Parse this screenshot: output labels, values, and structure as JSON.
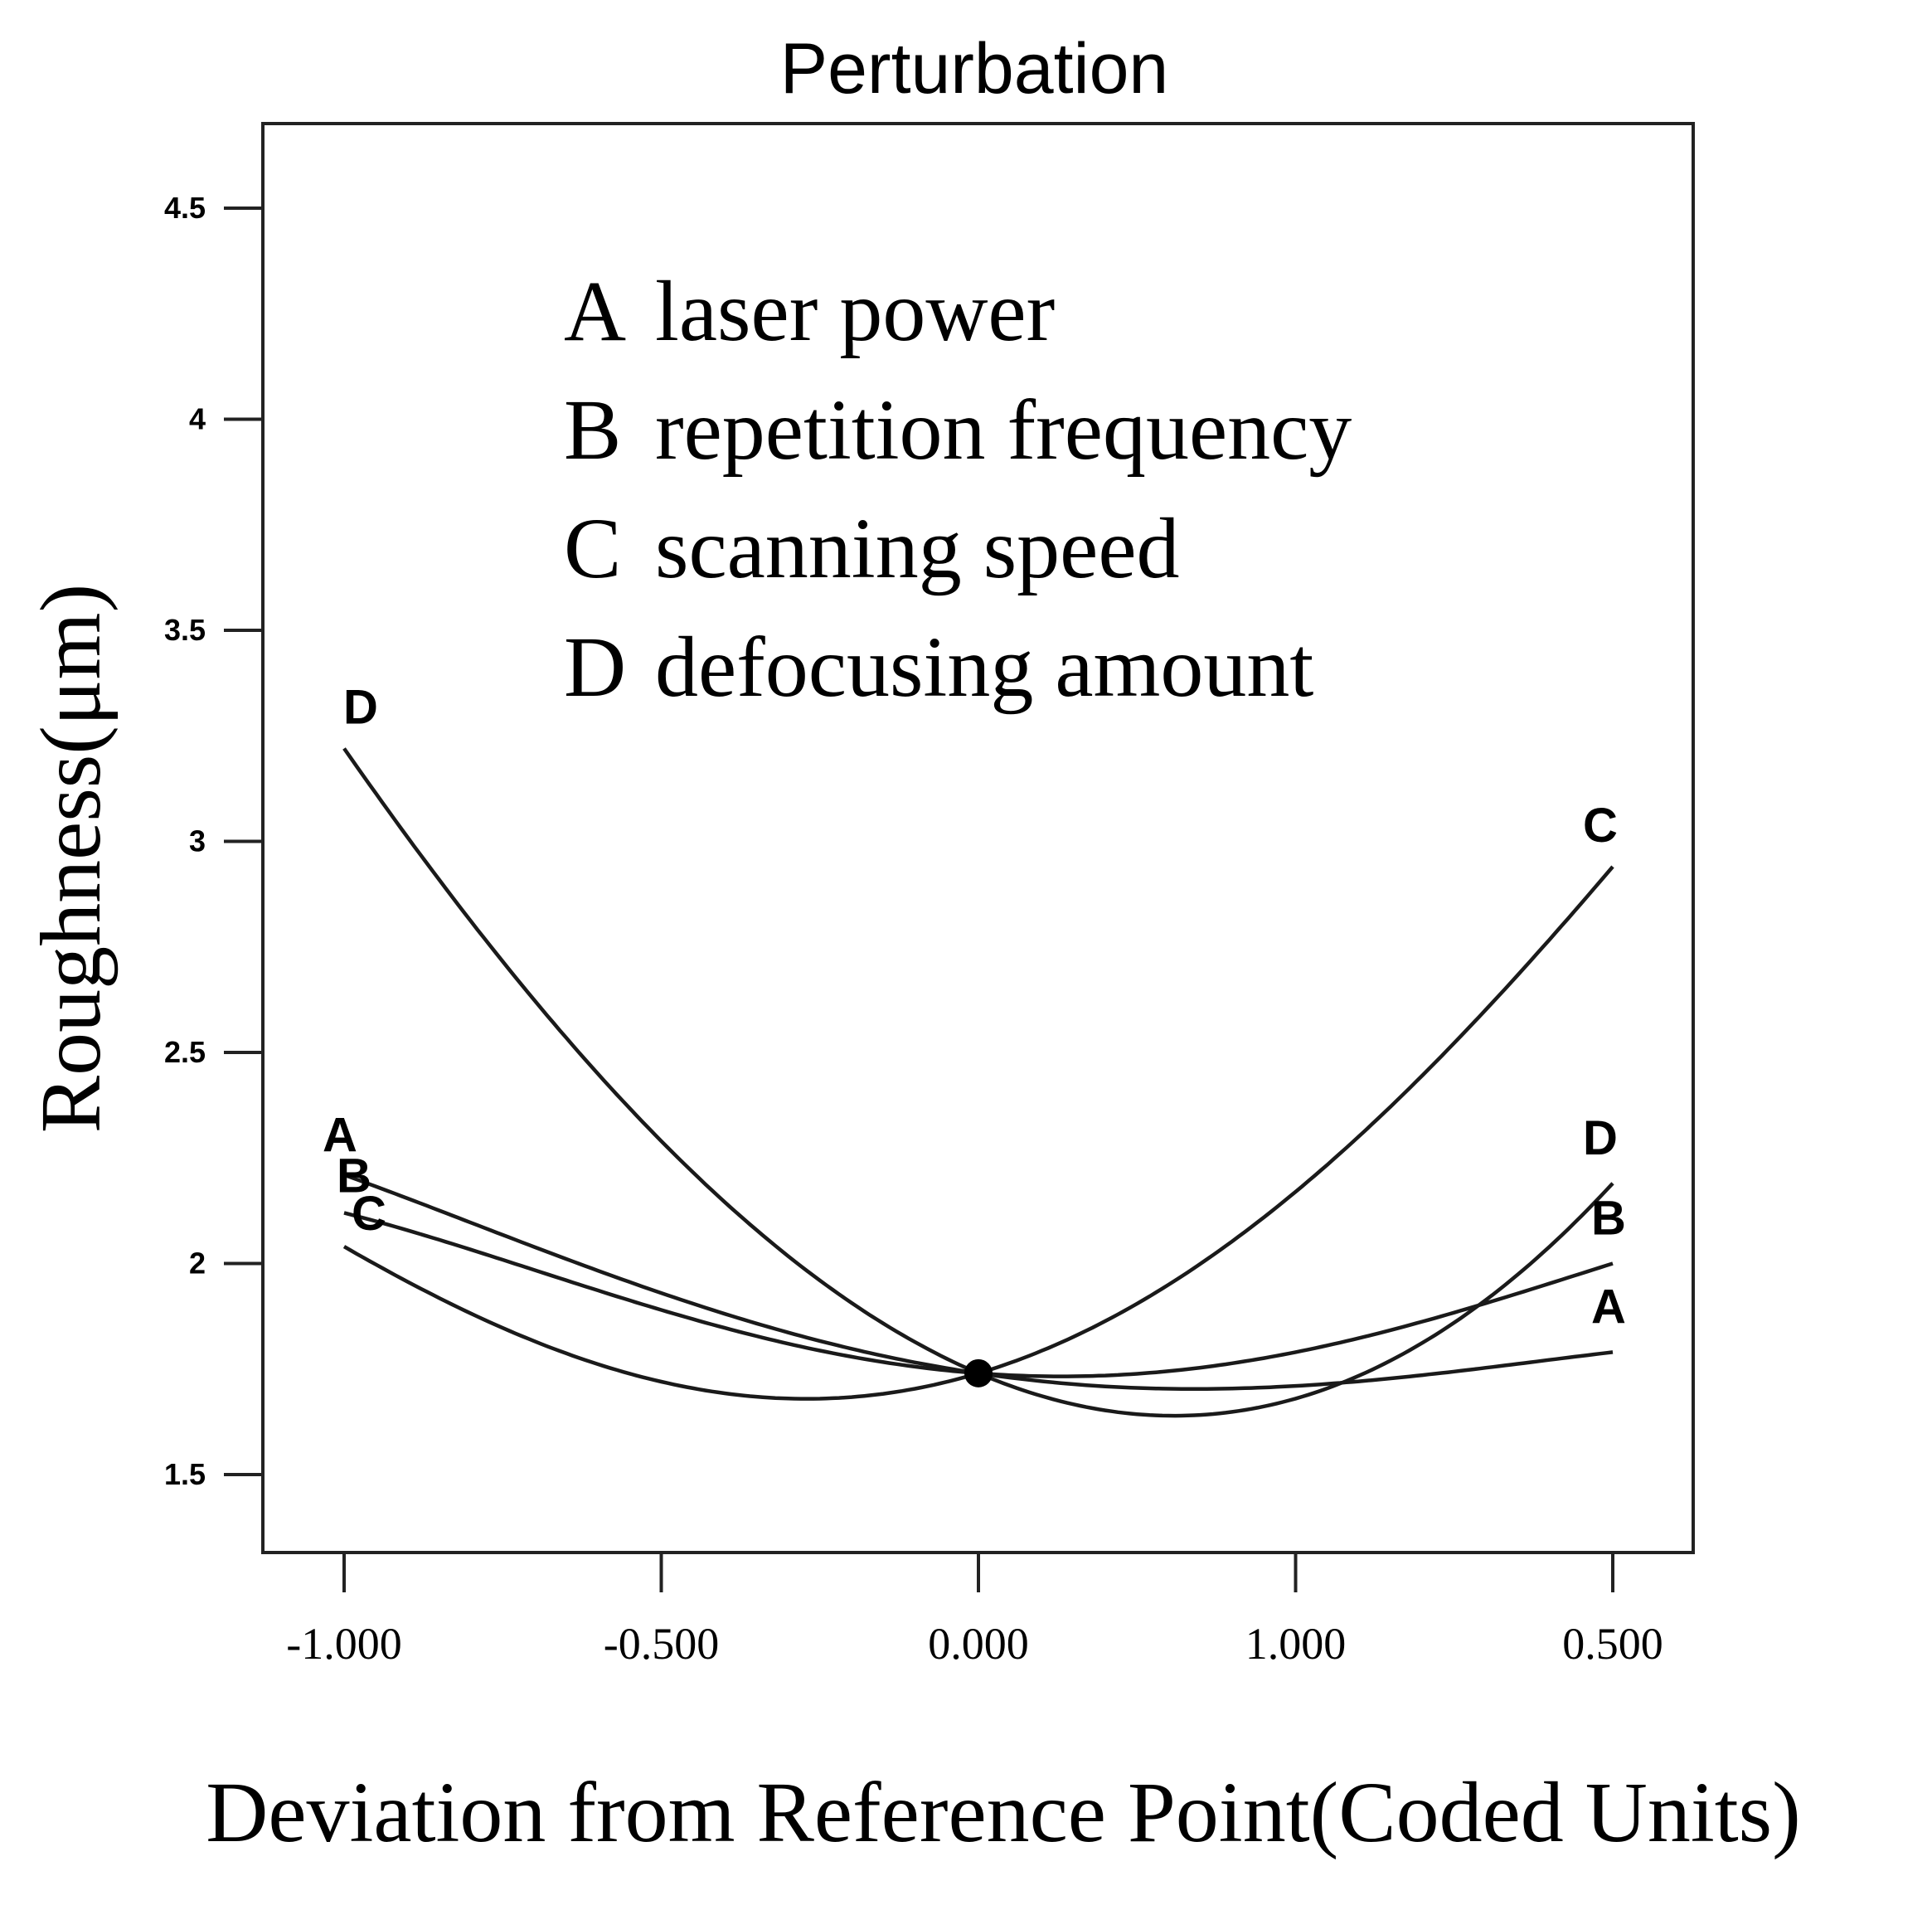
{
  "chart_data": {
    "type": "line",
    "title": "Perturbation",
    "xlabel": "Deviation from Reference Point(Coded Units)",
    "ylabel": "Roughness(μm)",
    "ylim": [
      1.3,
      4.7
    ],
    "x_coded_range": [
      -1,
      1
    ],
    "x_tick_labels": [
      "-1.000",
      "-0.500",
      "0.000",
      "1.000",
      "0.500"
    ],
    "y_ticks": [
      1.5,
      2,
      2.5,
      3,
      3.5,
      4,
      4.5
    ],
    "y_tick_labels": [
      "1.5",
      "2",
      "2.5",
      "3",
      "3.5",
      "4",
      "4.5"
    ],
    "grid": false,
    "reference_point": {
      "x": 0,
      "y": 1.74
    },
    "legend": [
      {
        "key": "A",
        "label": "laser power"
      },
      {
        "key": "B",
        "label": "repetition frequency"
      },
      {
        "key": "C",
        "label": "scanning speed"
      },
      {
        "key": "D",
        "label": "defocusing amount"
      }
    ],
    "legend_position": "top-center",
    "series": [
      {
        "name": "A",
        "x": [
          -1,
          -0.5,
          0,
          0.5,
          1
        ],
        "y": [
          2.21,
          1.93,
          1.74,
          1.71,
          1.79
        ]
      },
      {
        "name": "B",
        "x": [
          -1,
          -0.5,
          0,
          0.5,
          1
        ],
        "y": [
          2.12,
          1.89,
          1.74,
          1.79,
          2.0
        ]
      },
      {
        "name": "C",
        "x": [
          -1,
          -0.5,
          0,
          0.5,
          1
        ],
        "y": [
          2.04,
          1.72,
          1.74,
          2.17,
          2.94
        ]
      },
      {
        "name": "D",
        "x": [
          -1,
          -0.5,
          0,
          0.5,
          1
        ],
        "y": [
          3.22,
          2.29,
          1.74,
          1.68,
          2.19
        ]
      }
    ]
  }
}
